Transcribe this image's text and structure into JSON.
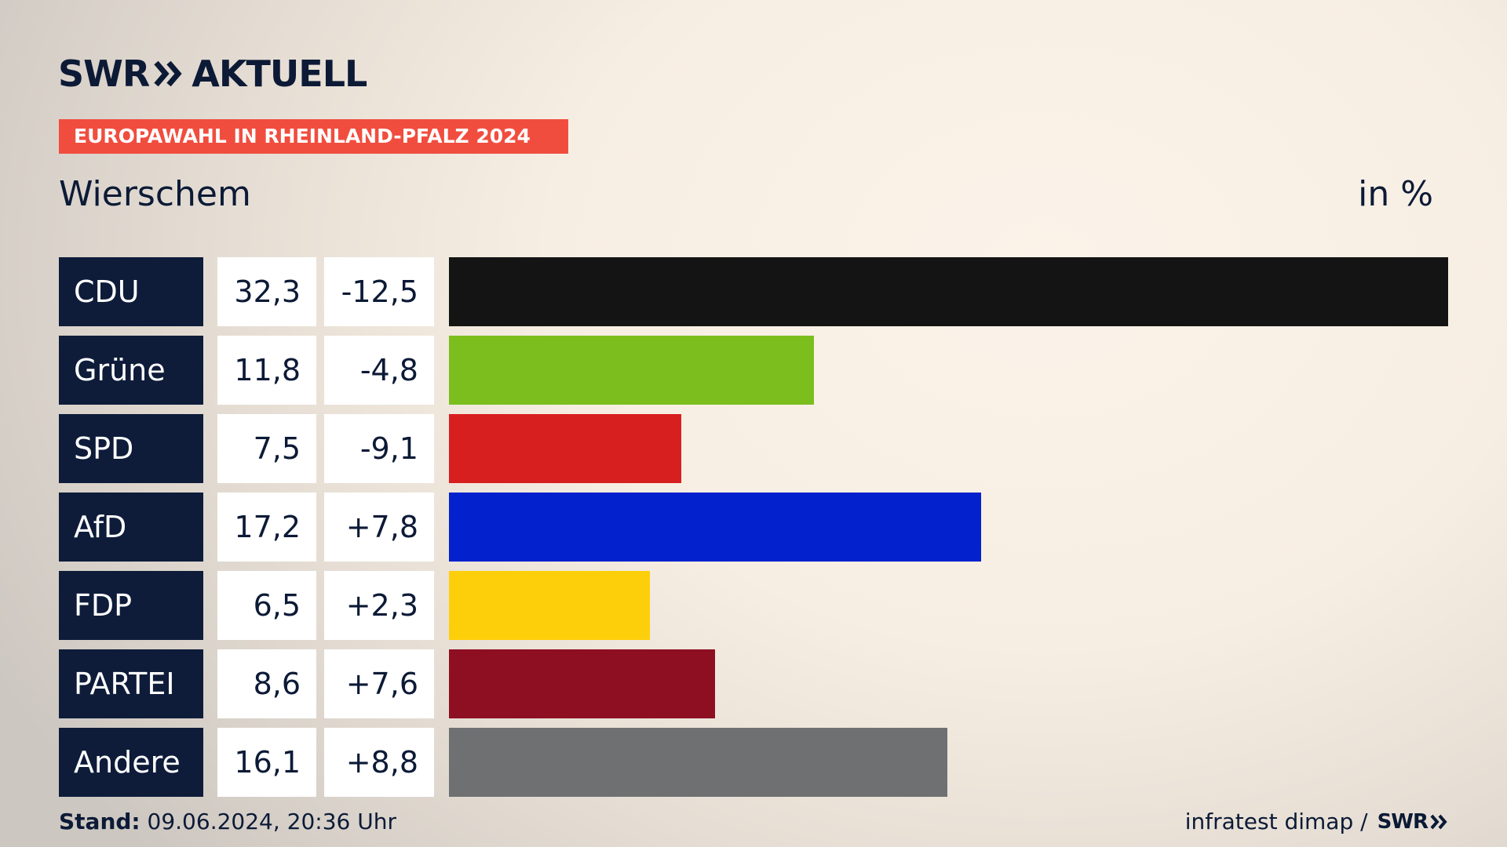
{
  "header": {
    "logo_left": "SWR",
    "logo_right": "AKTUELL",
    "kicker": "EUROPAWAHL IN RHEINLAND-PFALZ 2024",
    "place": "Wierschem",
    "unit": "in %"
  },
  "chart_data": {
    "type": "bar",
    "orientation": "horizontal",
    "categories": [
      "CDU",
      "Grüne",
      "SPD",
      "AfD",
      "FDP",
      "PARTEI",
      "Andere"
    ],
    "values": [
      32.3,
      11.8,
      7.5,
      17.2,
      6.5,
      8.6,
      16.1
    ],
    "value_labels": [
      "32,3",
      "11,8",
      "7,5",
      "17,2",
      "6,5",
      "8,6",
      "16,1"
    ],
    "diff_labels": [
      "-12,5",
      "-4,8",
      "-9,1",
      "+7,8",
      "+2,3",
      "+7,6",
      "+8,8"
    ],
    "colors": [
      "#141414",
      "#7bbe1e",
      "#d81f1f",
      "#0321cd",
      "#fdcf0b",
      "#8e0f22",
      "#6f7072"
    ],
    "xlim": [
      0,
      32.3
    ],
    "grid": false
  },
  "footer": {
    "stand_label": "Stand:",
    "stand_value": "09.06.2024, 20:36 Uhr",
    "source": "infratest dimap /",
    "source_logo": "SWR"
  }
}
